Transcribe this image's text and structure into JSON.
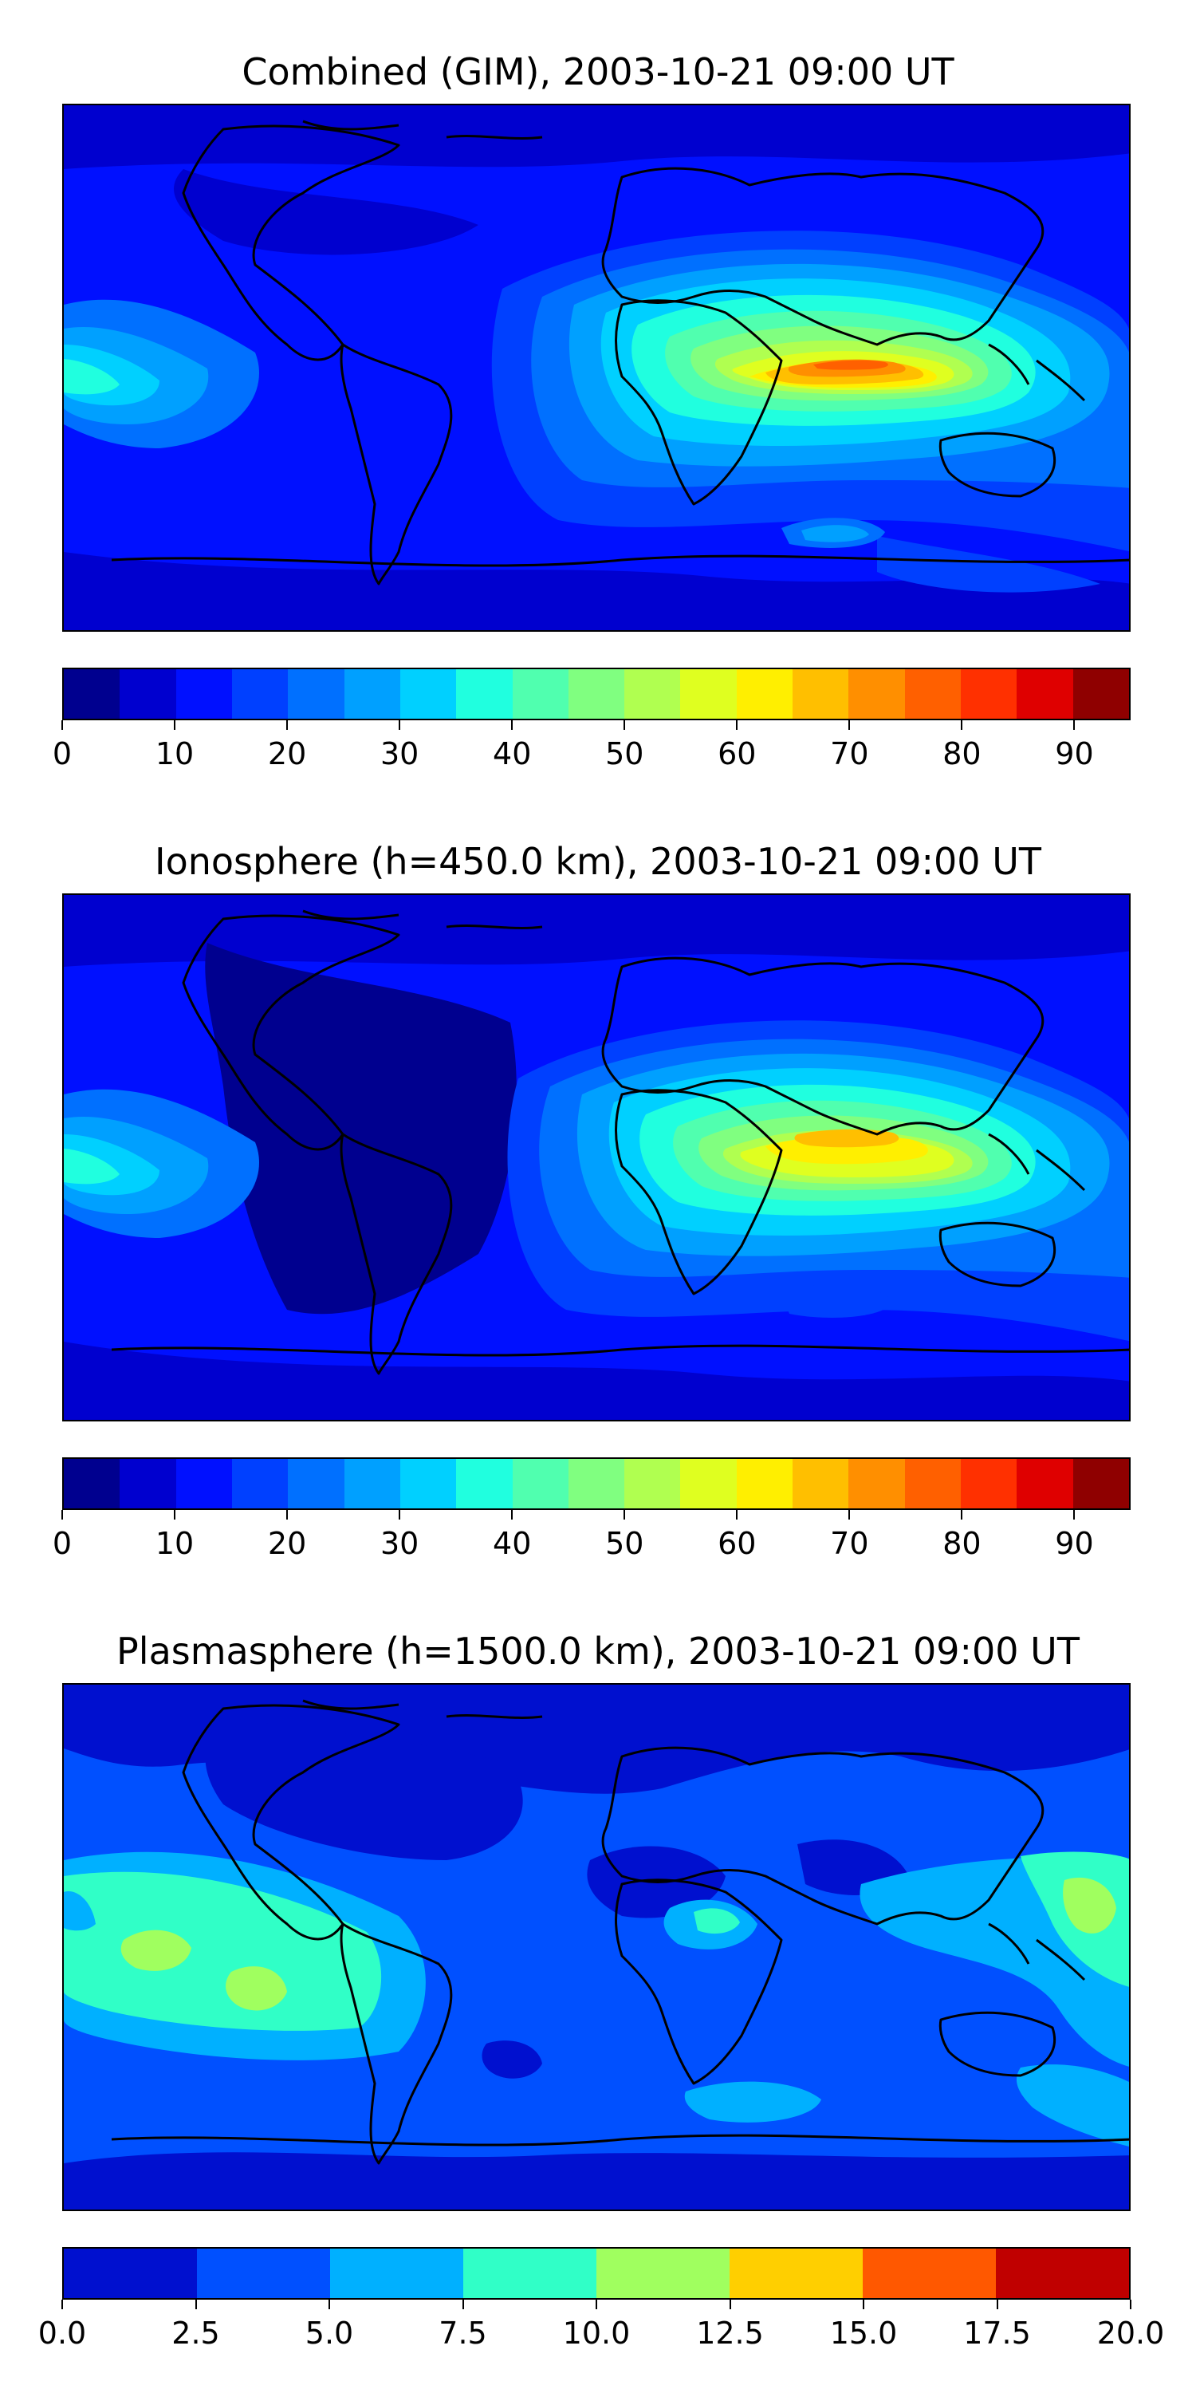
{
  "panels": [
    {
      "title": "Combined (GIM), 2003-10-21 09:00 UT",
      "colorbar": {
        "colors": [
          "#00008f",
          "#0000cf",
          "#0010ff",
          "#0040ff",
          "#0070ff",
          "#00a0ff",
          "#00d0ff",
          "#20ffdf",
          "#50ffaf",
          "#80ff80",
          "#b0ff50",
          "#dfff20",
          "#ffef00",
          "#ffbf00",
          "#ff8f00",
          "#ff6000",
          "#ff3000",
          "#df0000",
          "#8f0000"
        ],
        "ticks": [
          "0",
          "10",
          "20",
          "30",
          "40",
          "50",
          "60",
          "70",
          "80",
          "90"
        ]
      }
    },
    {
      "title": "Ionosphere  (h=450.0 km), 2003-10-21 09:00 UT",
      "colorbar": {
        "colors": [
          "#00008f",
          "#0000cf",
          "#0010ff",
          "#0040ff",
          "#0070ff",
          "#00a0ff",
          "#00d0ff",
          "#20ffdf",
          "#50ffaf",
          "#80ff80",
          "#b0ff50",
          "#dfff20",
          "#ffef00",
          "#ffbf00",
          "#ff8f00",
          "#ff6000",
          "#ff3000",
          "#df0000",
          "#8f0000"
        ],
        "ticks": [
          "0",
          "10",
          "20",
          "30",
          "40",
          "50",
          "60",
          "70",
          "80",
          "90"
        ]
      }
    },
    {
      "title": "Plasmasphere (h=1500.0 km), 2003-10-21 09:00 UT",
      "colorbar": {
        "colors": [
          "#0010cf",
          "#0050ff",
          "#00b0ff",
          "#30ffc7",
          "#a0ff5f",
          "#ffcf00",
          "#ff5800",
          "#c00000"
        ],
        "ticks": [
          "0.0",
          "2.5",
          "5.0",
          "7.5",
          "10.0",
          "12.5",
          "15.0",
          "17.5",
          "20.0"
        ]
      }
    }
  ]
}
